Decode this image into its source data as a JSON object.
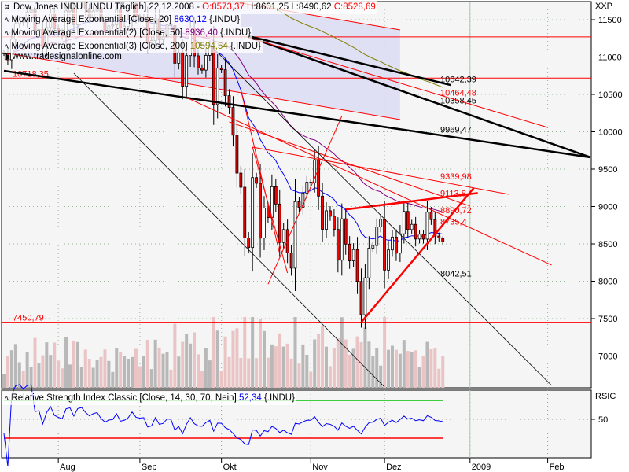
{
  "header": {
    "instrument": "Dow Jones INDU [.INDU  Täglich] 22.12.2008 -",
    "open": "O:8573,37",
    "high": "H:8601,25",
    "low": "L:8490,62",
    "close": "C:8528,69"
  },
  "indicators": [
    {
      "label": "Moving Average Exponential [Close, 20]",
      "value": "8630,12",
      "suffix": "{.INDU}",
      "color": "#0000ff",
      "period": 20
    },
    {
      "label": "Moving Average Exponential(2) [Close, 50]",
      "value": "8936,40",
      "suffix": "{.INDU}",
      "color": "#800080",
      "period": 50
    },
    {
      "label": "Moving Average Exponential(3) [Close, 200]",
      "value": "10594,54",
      "suffix": "{.INDU}",
      "color": "#808000",
      "period": 200
    }
  ],
  "watermark": "www.tradesignalonline.com",
  "rsi": {
    "label": "Relative Strength Index Classic [Close, 14, 30, 70, Nein]",
    "value": "52,34",
    "suffix": "{.INDU}",
    "axis_title": "RSIC",
    "axis_ticks": [
      50
    ],
    "upper": 70,
    "lower": 30,
    "upper_color": "#00c000",
    "lower_color": "#ff0000",
    "line_color": "#0000ff"
  },
  "chart_data": {
    "type": "candlestick",
    "price_axis_title": "XXP",
    "ylim": [
      6600,
      11750
    ],
    "yticks": [
      11500,
      11000,
      10500,
      10000,
      9500,
      9000,
      8500,
      8000,
      7500,
      7000
    ],
    "yticks_labels": [
      "11500",
      "11000",
      "10500",
      "10000",
      "9500",
      "9000",
      "8500",
      "8000",
      "7500",
      "7000"
    ],
    "xticks": [
      {
        "date": "2008-08-01",
        "label": "Aug"
      },
      {
        "date": "2008-09-02",
        "label": "Sep"
      },
      {
        "date": "2008-10-01",
        "label": "Okt"
      },
      {
        "date": "2008-11-03",
        "label": "Nov"
      },
      {
        "date": "2008-12-01",
        "label": "Dez"
      },
      {
        "date": "2009-01-02",
        "label": "2009"
      },
      {
        "date": "2009-02-02",
        "label": "Feb"
      }
    ],
    "year_marker": "2009-01-02",
    "grid": true,
    "up_color": "#ffffff",
    "down_color": "#ff0000",
    "dates": [
      "2008-07-14",
      "2008-07-15",
      "2008-07-16",
      "2008-07-17",
      "2008-07-18",
      "2008-07-21",
      "2008-07-22",
      "2008-07-23",
      "2008-07-24",
      "2008-07-25",
      "2008-07-28",
      "2008-07-29",
      "2008-07-30",
      "2008-07-31",
      "2008-08-01",
      "2008-08-04",
      "2008-08-05",
      "2008-08-06",
      "2008-08-07",
      "2008-08-08",
      "2008-08-11",
      "2008-08-12",
      "2008-08-13",
      "2008-08-14",
      "2008-08-15",
      "2008-08-18",
      "2008-08-19",
      "2008-08-20",
      "2008-08-21",
      "2008-08-22",
      "2008-08-25",
      "2008-08-26",
      "2008-08-27",
      "2008-08-28",
      "2008-08-29",
      "2008-09-02",
      "2008-09-03",
      "2008-09-04",
      "2008-09-05",
      "2008-09-08",
      "2008-09-09",
      "2008-09-10",
      "2008-09-11",
      "2008-09-12",
      "2008-09-15",
      "2008-09-16",
      "2008-09-17",
      "2008-09-18",
      "2008-09-19",
      "2008-09-22",
      "2008-09-23",
      "2008-09-24",
      "2008-09-25",
      "2008-09-26",
      "2008-09-29",
      "2008-09-30",
      "2008-10-01",
      "2008-10-02",
      "2008-10-03",
      "2008-10-06",
      "2008-10-07",
      "2008-10-08",
      "2008-10-09",
      "2008-10-10",
      "2008-10-13",
      "2008-10-14",
      "2008-10-15",
      "2008-10-16",
      "2008-10-17",
      "2008-10-20",
      "2008-10-21",
      "2008-10-22",
      "2008-10-23",
      "2008-10-24",
      "2008-10-27",
      "2008-10-28",
      "2008-10-29",
      "2008-10-30",
      "2008-10-31",
      "2008-11-03",
      "2008-11-04",
      "2008-11-05",
      "2008-11-06",
      "2008-11-07",
      "2008-11-10",
      "2008-11-11",
      "2008-11-12",
      "2008-11-13",
      "2008-11-14",
      "2008-11-17",
      "2008-11-18",
      "2008-11-19",
      "2008-11-20",
      "2008-11-21",
      "2008-11-24",
      "2008-11-25",
      "2008-11-26",
      "2008-11-28",
      "2008-12-01",
      "2008-12-02",
      "2008-12-03",
      "2008-12-04",
      "2008-12-05",
      "2008-12-08",
      "2008-12-09",
      "2008-12-10",
      "2008-12-11",
      "2008-12-12",
      "2008-12-15",
      "2008-12-16",
      "2008-12-17",
      "2008-12-18",
      "2008-12-19",
      "2008-12-22"
    ],
    "close": [
      11055,
      10963,
      11239,
      11446,
      11496,
      11467,
      11603,
      11632,
      11349,
      11370,
      11132,
      11397,
      11584,
      11378,
      11326,
      11284,
      11616,
      11656,
      11432,
      11734,
      11782,
      11642,
      11532,
      11615,
      11659,
      11479,
      11348,
      11417,
      11430,
      11628,
      11386,
      11413,
      11502,
      11715,
      11543,
      11516,
      11532,
      11188,
      11220,
      11511,
      11231,
      11268,
      11434,
      11421,
      10917,
      11059,
      10609,
      11019,
      11388,
      11016,
      10854,
      10825,
      11022,
      11143,
      10365,
      10851,
      10831,
      10483,
      10325,
      9955,
      9447,
      9258,
      8579,
      8451,
      9387,
      9311,
      8577,
      8979,
      8852,
      9265,
      9033,
      8519,
      8691,
      8378,
      8175,
      9065,
      8990,
      9180,
      9325,
      9319,
      9625,
      9139,
      8695,
      8943,
      8870,
      8693,
      8282,
      8835,
      8497,
      8273,
      8424,
      7997,
      7552,
      8046,
      8443,
      8479,
      8726,
      8829,
      8149,
      8419,
      8591,
      8376,
      8635,
      8934,
      8691,
      8761,
      8565,
      8629,
      8564,
      8924,
      8824,
      8604,
      8579,
      8528.69
    ],
    "last_bar": {
      "open": 8573.37,
      "high": 8601.25,
      "low": 8490.62,
      "close": 8528.69
    },
    "horizontal_lines": [
      {
        "price": 10718.35,
        "label": "10718,35",
        "color": "#ff0000",
        "label_side": "left"
      },
      {
        "price": 7450.79,
        "label": "7450,79",
        "color": "#ff0000",
        "label_side": "left"
      },
      {
        "price": 11270,
        "label": "",
        "color": "#ff0000",
        "label_side": "none"
      },
      {
        "price": 11920,
        "label": "",
        "color": "#ff0000",
        "label_side": "none"
      }
    ],
    "channel": {
      "color": "#dcdcf5",
      "edge_color": "#ff0000",
      "upper": [
        [
          "2008-07-11",
          12268
        ],
        [
          "2008-12-05",
          11363
        ]
      ],
      "lower": [
        [
          "2008-07-11",
          11068
        ],
        [
          "2008-12-05",
          10163
        ]
      ]
    },
    "trendlines": [
      {
        "from": [
          "2008-07-14",
          10816
        ],
        "to": [
          "2009-02-18",
          9658
        ],
        "color": "#000000",
        "width": 2.5,
        "label": "9969,47"
      },
      {
        "from": [
          "2008-10-10",
          11268
        ],
        "to": [
          "2009-02-18",
          9658
        ],
        "color": "#000000",
        "width": 2.5,
        "label": "10358,45"
      },
      {
        "from": [
          "2008-10-10",
          11279
        ],
        "to": [
          "2008-12-24",
          10626
        ],
        "color": "#000000",
        "width": 2.5,
        "label": "10642,39"
      },
      {
        "from": [
          "2008-10-10",
          11260
        ],
        "to": [
          "2009-02-02",
          10058
        ],
        "color": "#ff0000",
        "width": 1,
        "label": "10464,48"
      },
      {
        "from": [
          "2008-10-13",
          9795
        ],
        "to": [
          "2009-01-16",
          9163
        ],
        "color": "#ff0000",
        "width": 1,
        "label": "9339,98"
      },
      {
        "from": [
          "2008-10-03",
          10132
        ],
        "to": [
          "2009-01-02",
          9006
        ],
        "color": "#ff0000",
        "width": 1,
        "label": "8890,72"
      },
      {
        "from": [
          "2008-09-18",
          10458
        ],
        "to": [
          "2009-02-03",
          8216
        ],
        "color": "#ff0000",
        "width": 1,
        "label": "8735,4"
      },
      {
        "from": [
          "2008-11-20",
          7450.79
        ],
        "to": [
          "2009-01-05",
          9250
        ],
        "color": "#ff0000",
        "width": 2.5,
        "label": ""
      },
      {
        "from": [
          "2008-11-14",
          8960
        ],
        "to": [
          "2009-01-06",
          9180
        ],
        "color": "#ff0000",
        "width": 2.5,
        "label": "9113,8"
      },
      {
        "from": [
          "2008-10-13",
          9795
        ],
        "to": [
          "2008-10-24",
          8110
        ],
        "color": "#ff0000",
        "width": 1,
        "label": ""
      },
      {
        "from": [
          "2008-10-08",
          10560
        ],
        "to": [
          "2008-10-22",
          8370
        ],
        "color": "#ff0000",
        "width": 1,
        "label": ""
      },
      {
        "from": [
          "2008-10-17",
          7960
        ],
        "to": [
          "2008-11-13",
          10210
        ],
        "color": "#ff0000",
        "width": 1,
        "label": ""
      },
      {
        "from": [
          "2008-08-07",
          10784
        ],
        "to": [
          "2008-12-01",
          6584
        ],
        "color": "#000000",
        "width": 0.8,
        "label": ""
      },
      {
        "from": [
          "2008-09-29",
          11111
        ],
        "to": [
          "2009-02-03",
          6605
        ],
        "color": "#000000",
        "width": 0.8,
        "label": "8042,51"
      }
    ]
  }
}
